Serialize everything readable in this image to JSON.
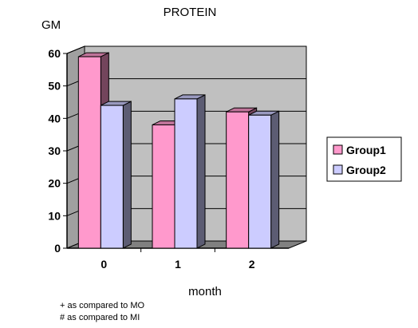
{
  "chart_data": {
    "type": "bar",
    "title": "PROTEIN",
    "ylabel": "GM",
    "xlabel": "month",
    "categories": [
      "0",
      "1",
      "2"
    ],
    "series": [
      {
        "name": "Group1",
        "values": [
          59,
          38,
          42
        ],
        "color": "#ff99cc"
      },
      {
        "name": "Group2",
        "values": [
          44,
          46,
          41
        ],
        "color": "#ccccff"
      }
    ],
    "ylim": [
      0,
      60
    ],
    "yticks": [
      "0",
      "10",
      "20",
      "30",
      "40",
      "50",
      "60"
    ],
    "grid": true,
    "legend": "right",
    "wall_color": "#c0c0c0",
    "floor_color": "#808080"
  },
  "notes": [
    "+ as compared to MO",
    "# as compared to MI"
  ]
}
